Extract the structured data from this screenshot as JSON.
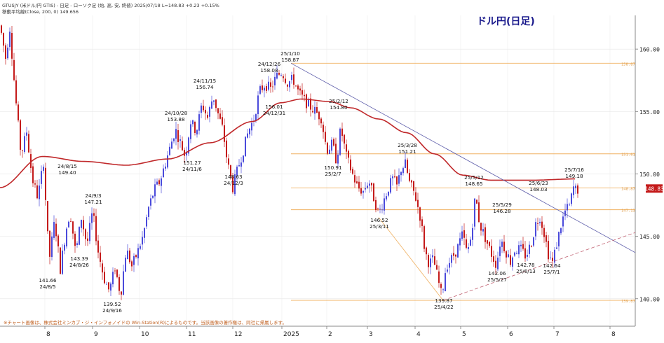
{
  "header": {
    "line1": "GTUSJY (米ドル/円 GTIS) - 日足 - ローソク足 (始, 高, 安, 終値)  2025/07/18 L=148.83 +0.23 +0.15%",
    "line2": "移動平均線(Close, 200, 0) 149.656"
  },
  "chart_title": "ドル円(日足)",
  "footer_note": "※チャート画像は、株式会社ミンカブ・ジ・インフォノイドの Win-Station(R)によるものです。当該画像の著作権は、同社に帰属します。",
  "colors": {
    "up": "#4a4adb",
    "down": "#c41a1a",
    "ma": "#c0282a",
    "trend": "#5a5aa8",
    "support": "#c06070",
    "hline": "#f0b060",
    "fib": "#f0b060",
    "price_box": "#c41a1a",
    "title": "#1a1a8c"
  },
  "chart_data": {
    "type": "candlestick",
    "y_axis": {
      "min": 137.8,
      "max": 162.7,
      "ticks": [
        "140.00",
        "145.00",
        "150.00",
        "155.00",
        "160.00"
      ],
      "side": "right"
    },
    "x_axis": {
      "labels": [
        "8",
        "9",
        "10",
        "11",
        "12",
        "2025",
        "2",
        "3",
        "4",
        "5",
        "6",
        "7",
        "8"
      ]
    },
    "last_price_label": "148.83",
    "moving_average": {
      "name": "200日移動平均",
      "anchors": [
        [
          0,
          148.9
        ],
        [
          60,
          151.4
        ],
        [
          120,
          151.0
        ],
        [
          180,
          150.7
        ],
        [
          240,
          151.2
        ],
        [
          300,
          152.5
        ],
        [
          360,
          154.2
        ],
        [
          400,
          155.7
        ],
        [
          430,
          156.0
        ],
        [
          470,
          155.8
        ],
        [
          500,
          155.3
        ],
        [
          540,
          154.4
        ],
        [
          580,
          153.3
        ],
        [
          620,
          151.6
        ],
        [
          660,
          149.9
        ],
        [
          700,
          149.5
        ],
        [
          760,
          149.5
        ],
        [
          820,
          149.6
        ]
      ]
    },
    "price_path": [
      [
        0,
        161.9
      ],
      [
        8,
        159.3
      ],
      [
        14,
        161.7
      ],
      [
        22,
        156.2
      ],
      [
        30,
        151.5
      ],
      [
        38,
        153.4
      ],
      [
        46,
        149.6
      ],
      [
        54,
        148.1
      ],
      [
        62,
        151.0
      ],
      [
        70,
        143.0
      ],
      [
        78,
        146.3
      ],
      [
        86,
        142.4
      ],
      [
        94,
        145.5
      ],
      [
        100,
        147.0
      ],
      [
        108,
        143.6
      ],
      [
        116,
        146.5
      ],
      [
        124,
        144.3
      ],
      [
        132,
        147.0
      ],
      [
        140,
        143.8
      ],
      [
        148,
        141.7
      ],
      [
        156,
        140.6
      ],
      [
        164,
        142.5
      ],
      [
        172,
        140.3
      ],
      [
        180,
        144.0
      ],
      [
        188,
        142.6
      ],
      [
        196,
        143.7
      ],
      [
        204,
        145.0
      ],
      [
        212,
        147.3
      ],
      [
        220,
        148.7
      ],
      [
        228,
        149.4
      ],
      [
        236,
        150.9
      ],
      [
        244,
        152.4
      ],
      [
        250,
        153.6
      ],
      [
        258,
        152.4
      ],
      [
        264,
        151.4
      ],
      [
        272,
        154.2
      ],
      [
        280,
        153.4
      ],
      [
        288,
        155.6
      ],
      [
        296,
        154.5
      ],
      [
        304,
        156.3
      ],
      [
        312,
        154.6
      ],
      [
        318,
        153.5
      ],
      [
        324,
        151.0
      ],
      [
        332,
        148.9
      ],
      [
        340,
        150.6
      ],
      [
        348,
        152.1
      ],
      [
        354,
        153.4
      ],
      [
        362,
        154.4
      ],
      [
        370,
        156.6
      ],
      [
        378,
        157.2
      ],
      [
        386,
        156.8
      ],
      [
        394,
        157.8
      ],
      [
        402,
        158.2
      ],
      [
        410,
        157.3
      ],
      [
        418,
        157.6
      ],
      [
        426,
        156.5
      ],
      [
        434,
        155.9
      ],
      [
        442,
        155.4
      ],
      [
        450,
        155.0
      ],
      [
        458,
        154.5
      ],
      [
        466,
        151.9
      ],
      [
        474,
        152.4
      ],
      [
        480,
        151.0
      ],
      [
        486,
        153.7
      ],
      [
        494,
        151.4
      ],
      [
        502,
        150.1
      ],
      [
        510,
        148.9
      ],
      [
        518,
        148.6
      ],
      [
        526,
        149.5
      ],
      [
        534,
        147.9
      ],
      [
        540,
        146.8
      ],
      [
        546,
        147.7
      ],
      [
        554,
        148.9
      ],
      [
        560,
        149.6
      ],
      [
        566,
        149.0
      ],
      [
        572,
        150.4
      ],
      [
        578,
        150.8
      ],
      [
        584,
        149.3
      ],
      [
        592,
        148.3
      ],
      [
        600,
        146.4
      ],
      [
        606,
        143.8
      ],
      [
        612,
        142.8
      ],
      [
        618,
        143.2
      ],
      [
        624,
        141.7
      ],
      [
        630,
        140.2
      ],
      [
        636,
        142.6
      ],
      [
        644,
        143.2
      ],
      [
        652,
        144.0
      ],
      [
        660,
        145.2
      ],
      [
        666,
        143.6
      ],
      [
        672,
        145.0
      ],
      [
        678,
        148.3
      ],
      [
        684,
        146.0
      ],
      [
        692,
        144.9
      ],
      [
        700,
        143.7
      ],
      [
        708,
        142.7
      ],
      [
        714,
        144.8
      ],
      [
        720,
        144.0
      ],
      [
        728,
        143.0
      ],
      [
        734,
        143.9
      ],
      [
        742,
        144.0
      ],
      [
        750,
        143.4
      ],
      [
        758,
        144.5
      ],
      [
        764,
        146.0
      ],
      [
        770,
        146.6
      ],
      [
        776,
        145.3
      ],
      [
        782,
        143.6
      ],
      [
        788,
        142.9
      ],
      [
        794,
        144.4
      ],
      [
        800,
        145.9
      ],
      [
        806,
        147.0
      ],
      [
        812,
        147.4
      ],
      [
        818,
        148.9
      ],
      [
        822,
        148.7
      ],
      [
        826,
        148.8
      ]
    ],
    "annotations": [
      {
        "date": "24/8/5",
        "value": "141.66"
      },
      {
        "date": "24/8/15",
        "value": "149.40"
      },
      {
        "date": "24/8/26",
        "value": "143.39"
      },
      {
        "date": "24/9/3",
        "value": "147.21"
      },
      {
        "date": "24/9/16",
        "value": "139.52"
      },
      {
        "date": "24/10/28",
        "value": "153.88"
      },
      {
        "date": "24/11/6",
        "value": "151.27"
      },
      {
        "date": "24/11/15",
        "value": "156.74"
      },
      {
        "date": "24/12/3",
        "value": "148.63"
      },
      {
        "date": "24/12/26",
        "value": "158.08"
      },
      {
        "date": "24/12/31",
        "value": "156.01"
      },
      {
        "date": "25/1/10",
        "value": "158.87"
      },
      {
        "date": "25/2/7",
        "value": "150.91"
      },
      {
        "date": "25/2/12",
        "value": "154.80"
      },
      {
        "date": "25/3/11",
        "value": "146.52"
      },
      {
        "date": "25/3/28",
        "value": "151.21"
      },
      {
        "date": "25/4/22",
        "value": "139.87"
      },
      {
        "date": "25/5/12",
        "value": "148.65"
      },
      {
        "date": "25/5/27",
        "value": "142.06"
      },
      {
        "date": "25/5/29",
        "value": "146.28"
      },
      {
        "date": "25/6/13",
        "value": "142.78"
      },
      {
        "date": "25/6/23",
        "value": "148.03"
      },
      {
        "date": "25/7/1",
        "value": "142.64"
      },
      {
        "date": "25/7/16",
        "value": "149.18"
      }
    ],
    "horizontal_levels": [
      {
        "value": 158.87,
        "label": "158.87"
      },
      {
        "value": 151.61,
        "label": "151.61"
      },
      {
        "value": 148.87,
        "label": "148.87"
      },
      {
        "value": 147.13,
        "label": "147.13"
      },
      {
        "value": 139.87,
        "label": "139.87"
      }
    ],
    "trendlines": [
      {
        "kind": "resistance",
        "from": {
          "index": 415,
          "value": 158.87
        },
        "to": {
          "index": 906,
          "value": 143.7
        }
      },
      {
        "kind": "support",
        "from": {
          "index": 632,
          "value": 139.87
        },
        "to": {
          "index": 906,
          "value": 145.3
        }
      },
      {
        "kind": "fib-leg",
        "from": {
          "index": 540,
          "value": 146.52
        },
        "to": {
          "index": 632,
          "value": 139.87
        }
      }
    ]
  }
}
